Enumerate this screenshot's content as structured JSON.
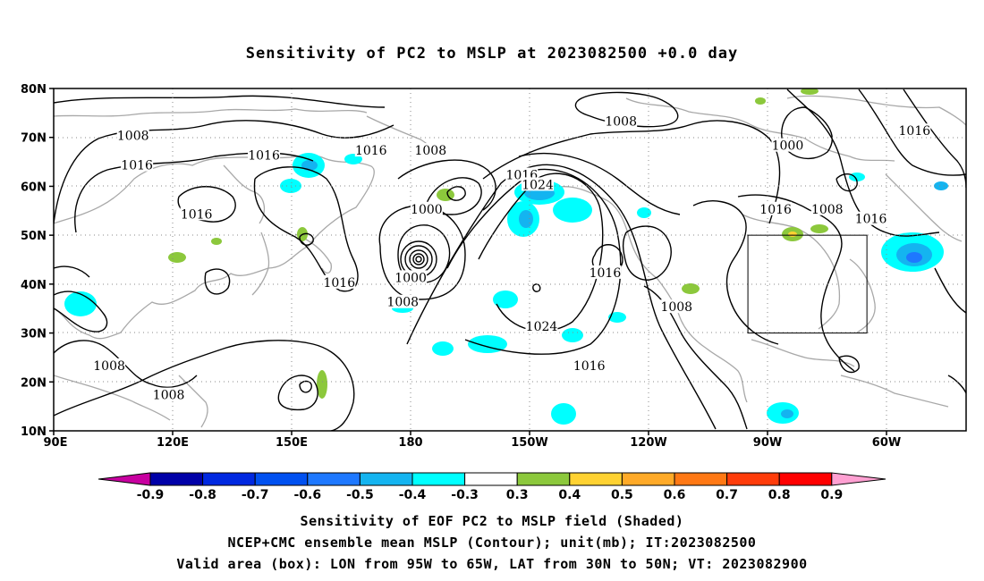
{
  "title": "Sensitivity of PC2 to MSLP at 2023082500 +0.0 day",
  "map": {
    "lat_labels": [
      "80N",
      "70N",
      "60N",
      "50N",
      "40N",
      "30N",
      "20N",
      "10N"
    ],
    "lon_labels": [
      "90E",
      "120E",
      "150E",
      "180",
      "150W",
      "120W",
      "90W",
      "60W"
    ],
    "lon_range": [
      90,
      320
    ],
    "lat_range": [
      10,
      80
    ],
    "valid_box": {
      "lon": [
        265,
        295
      ],
      "lat": [
        30,
        50
      ]
    },
    "contour_labels": [
      {
        "text": "1008",
        "lon": 110,
        "lat": 70
      },
      {
        "text": "1016",
        "lon": 111,
        "lat": 64
      },
      {
        "text": "1016",
        "lon": 143,
        "lat": 66
      },
      {
        "text": "1016",
        "lon": 126,
        "lat": 54
      },
      {
        "text": "1016",
        "lon": 170,
        "lat": 67
      },
      {
        "text": "1008",
        "lon": 185,
        "lat": 67
      },
      {
        "text": "1000",
        "lon": 184,
        "lat": 55
      },
      {
        "text": "1016",
        "lon": 208,
        "lat": 62
      },
      {
        "text": "1024",
        "lon": 212,
        "lat": 60
      },
      {
        "text": "1008",
        "lon": 233,
        "lat": 73
      },
      {
        "text": "1000",
        "lon": 275,
        "lat": 68
      },
      {
        "text": "1016",
        "lon": 307,
        "lat": 71
      },
      {
        "text": "1016",
        "lon": 272,
        "lat": 55
      },
      {
        "text": "1008",
        "lon": 285,
        "lat": 55
      },
      {
        "text": "1016",
        "lon": 296,
        "lat": 53
      },
      {
        "text": "1016",
        "lon": 229,
        "lat": 42
      },
      {
        "text": "1016",
        "lon": 162,
        "lat": 40
      },
      {
        "text": "1000",
        "lon": 180,
        "lat": 41
      },
      {
        "text": "1008",
        "lon": 178,
        "lat": 36
      },
      {
        "text": "1024",
        "lon": 213,
        "lat": 31
      },
      {
        "text": "1008",
        "lon": 247,
        "lat": 35
      },
      {
        "text": "1016",
        "lon": 225,
        "lat": 23
      },
      {
        "text": "1008",
        "lon": 104,
        "lat": 23
      },
      {
        "text": "1008",
        "lon": 119,
        "lat": 17
      }
    ]
  },
  "colorbar": {
    "ticks": [
      "-0.9",
      "-0.8",
      "-0.7",
      "-0.6",
      "-0.5",
      "-0.4",
      "-0.3",
      "0.3",
      "0.4",
      "0.5",
      "0.6",
      "0.7",
      "0.8",
      "0.9"
    ],
    "colors": [
      "#0000a8",
      "#0028e0",
      "#0050f0",
      "#1e78ff",
      "#14b4f0",
      "#00ffff",
      "#ffffff",
      "#8cc83c",
      "#ffd232",
      "#ffaa28",
      "#ff7814",
      "#ff3c0a",
      "#ff0000"
    ],
    "left_cap_color": "#c800a0",
    "right_cap_color": "#ffa0d2"
  },
  "captions": {
    "line1": "Sensitivity of EOF PC2 to MSLP field (Shaded)",
    "line2": "NCEP+CMC ensemble mean MSLP (Contour); unit(mb); IT:2023082500",
    "line3": "Valid area (box): LON from 95W to 65W, LAT from 30N to 50N; VT: 2023082900"
  }
}
